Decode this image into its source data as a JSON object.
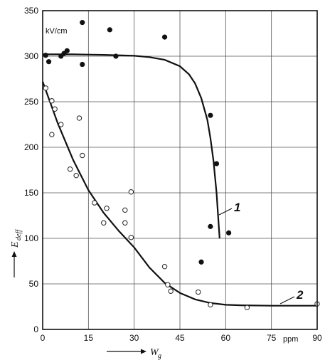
{
  "chart_data": {
    "type": "scatter",
    "title": "",
    "y_unit": "kV/cm",
    "x_unit": "ppm",
    "ylabel": "E",
    "ylabel_sub": "deff",
    "xlabel": "W",
    "xlabel_sub": "g",
    "xlim": [
      0,
      90
    ],
    "ylim": [
      0,
      350
    ],
    "x_ticks": [
      "0",
      "15",
      "30",
      "45",
      "60",
      "75",
      "90"
    ],
    "x_tick_values": [
      0,
      15,
      30,
      45,
      60,
      75,
      90
    ],
    "y_ticks": [
      "0",
      "50",
      "100",
      "150",
      "200",
      "250",
      "300",
      "350"
    ],
    "y_tick_values": [
      0,
      50,
      100,
      150,
      200,
      250,
      300,
      350
    ],
    "grid": true,
    "series": [
      {
        "name": "1",
        "marker": "filled-circle",
        "points": [
          [
            1,
            301
          ],
          [
            2,
            294
          ],
          [
            6,
            300
          ],
          [
            7,
            303
          ],
          [
            8,
            306
          ],
          [
            13,
            337
          ],
          [
            13,
            291
          ],
          [
            22,
            329
          ],
          [
            24,
            300
          ],
          [
            40,
            321
          ],
          [
            55,
            235
          ],
          [
            57,
            182
          ],
          [
            55,
            113
          ],
          [
            52,
            74
          ],
          [
            61,
            106
          ]
        ],
        "curve": [
          [
            0,
            302
          ],
          [
            10,
            302
          ],
          [
            20,
            301.5
          ],
          [
            30,
            300.5
          ],
          [
            35,
            299
          ],
          [
            40,
            296
          ],
          [
            45,
            289
          ],
          [
            48,
            280
          ],
          [
            50,
            270
          ],
          [
            52,
            254
          ],
          [
            54,
            230
          ],
          [
            55,
            210
          ],
          [
            56,
            185
          ],
          [
            57,
            150
          ],
          [
            58,
            100
          ]
        ]
      },
      {
        "name": "2",
        "marker": "open-circle",
        "points": [
          [
            1,
            265
          ],
          [
            3,
            214
          ],
          [
            3,
            251
          ],
          [
            4,
            242
          ],
          [
            6,
            225
          ],
          [
            9,
            176
          ],
          [
            11,
            169
          ],
          [
            12,
            232
          ],
          [
            13,
            191
          ],
          [
            17,
            139
          ],
          [
            20,
            117
          ],
          [
            21,
            133
          ],
          [
            27,
            131
          ],
          [
            27,
            117
          ],
          [
            29,
            151
          ],
          [
            29,
            101
          ],
          [
            40,
            69
          ],
          [
            41,
            49
          ],
          [
            42,
            42
          ],
          [
            51,
            41
          ],
          [
            55,
            27
          ],
          [
            67,
            24
          ],
          [
            90,
            28
          ]
        ],
        "curve": [
          [
            0,
            272
          ],
          [
            5,
            226
          ],
          [
            10,
            186
          ],
          [
            15,
            153
          ],
          [
            20,
            128
          ],
          [
            25,
            108
          ],
          [
            30,
            90
          ],
          [
            35,
            68
          ],
          [
            40,
            51
          ],
          [
            45,
            40
          ],
          [
            50,
            33
          ],
          [
            55,
            29
          ],
          [
            60,
            27
          ],
          [
            65,
            26.5
          ],
          [
            75,
            26
          ],
          [
            90,
            26
          ]
        ]
      }
    ]
  }
}
